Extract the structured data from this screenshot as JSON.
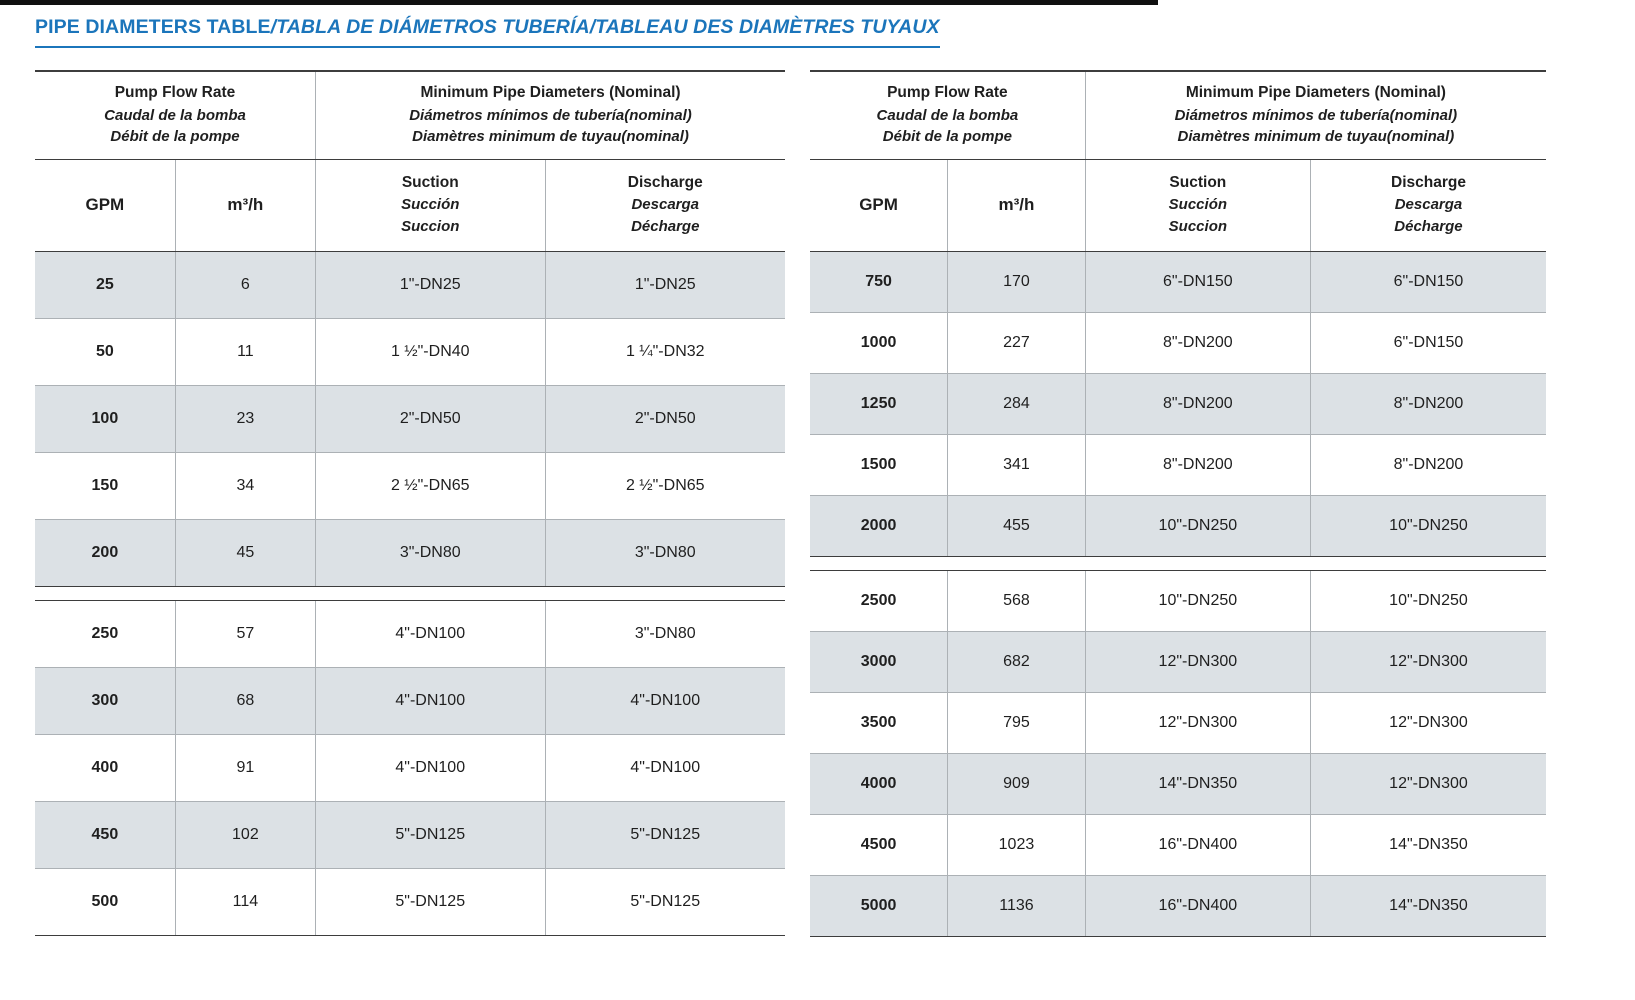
{
  "title": {
    "main": "PIPE DIAMETERS TABLE",
    "rest": "/TABLA DE DIÁMETROS TUBERÍA/TABLEAU DES DIAMÈTRES TUYAUX"
  },
  "colors": {
    "title_blue": "#1b75bb",
    "row_shade": "#dce1e5",
    "rule_dark": "#3d3d3d",
    "rule_light": "#acb1b5",
    "ink": "#1f1f1f"
  },
  "header": {
    "flow": {
      "en": "Pump Flow Rate",
      "es": "Caudal de la bomba",
      "fr": "Débit de la pompe"
    },
    "diam": {
      "en": "Minimum Pipe Diameters (Nominal)",
      "es": "Diámetros mínimos de tubería(nominal)",
      "fr": "Diamètres minimum de tuyau(nominal)"
    },
    "gpm": "GPM",
    "m3h": "m³/h",
    "suction": {
      "en": "Suction",
      "es": "Succión",
      "fr": "Succion"
    },
    "discharge": {
      "en": "Discharge",
      "es": "Descarga",
      "fr": "Décharge"
    }
  },
  "tables": [
    {
      "name": "left",
      "sections": [
        [
          [
            "25",
            "6",
            "1\"-DN25",
            "1\"-DN25"
          ],
          [
            "50",
            "11",
            "1 ½\"-DN40",
            "1 ¼\"-DN32"
          ],
          [
            "100",
            "23",
            "2\"-DN50",
            "2\"-DN50"
          ],
          [
            "150",
            "34",
            "2 ½\"-DN65",
            "2 ½\"-DN65"
          ],
          [
            "200",
            "45",
            "3\"-DN80",
            "3\"-DN80"
          ]
        ],
        [
          [
            "250",
            "57",
            "4\"-DN100",
            "3\"-DN80"
          ],
          [
            "300",
            "68",
            "4\"-DN100",
            "4\"-DN100"
          ],
          [
            "400",
            "91",
            "4\"-DN100",
            "4\"-DN100"
          ],
          [
            "450",
            "102",
            "5\"-DN125",
            "5\"-DN125"
          ],
          [
            "500",
            "114",
            "5\"-DN125",
            "5\"-DN125"
          ]
        ]
      ]
    },
    {
      "name": "right",
      "sections": [
        [
          [
            "750",
            "170",
            "6\"-DN150",
            "6\"-DN150"
          ],
          [
            "1000",
            "227",
            "8\"-DN200",
            "6\"-DN150"
          ],
          [
            "1250",
            "284",
            "8\"-DN200",
            "8\"-DN200"
          ],
          [
            "1500",
            "341",
            "8\"-DN200",
            "8\"-DN200"
          ],
          [
            "2000",
            "455",
            "10\"-DN250",
            "10\"-DN250"
          ]
        ],
        [
          [
            "2500",
            "568",
            "10\"-DN250",
            "10\"-DN250"
          ],
          [
            "3000",
            "682",
            "12\"-DN300",
            "12\"-DN300"
          ],
          [
            "3500",
            "795",
            "12\"-DN300",
            "12\"-DN300"
          ],
          [
            "4000",
            "909",
            "14\"-DN350",
            "12\"-DN300"
          ],
          [
            "4500",
            "1023",
            "16\"-DN400",
            "14\"-DN350"
          ],
          [
            "5000",
            "1136",
            "16\"-DN400",
            "14\"-DN350"
          ]
        ]
      ]
    }
  ]
}
